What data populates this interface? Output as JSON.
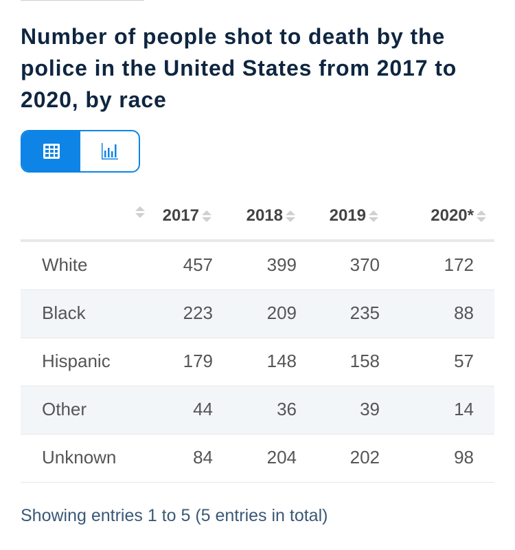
{
  "title": "Number of people shot to death by the police in the United States from 2017 to 2020, by race",
  "view_toggle": {
    "active": "table",
    "icons": [
      "table-icon",
      "bar-chart-icon"
    ],
    "accent": "#0d84e6"
  },
  "table": {
    "columns": [
      "2017",
      "2018",
      "2019",
      "2020*"
    ],
    "rows": [
      {
        "label": "White",
        "values": [
          "457",
          "399",
          "370",
          "172"
        ]
      },
      {
        "label": "Black",
        "values": [
          "223",
          "209",
          "235",
          "88"
        ]
      },
      {
        "label": "Hispanic",
        "values": [
          "179",
          "148",
          "158",
          "57"
        ]
      },
      {
        "label": "Other",
        "values": [
          "44",
          "36",
          "39",
          "14"
        ]
      },
      {
        "label": "Unknown",
        "values": [
          "84",
          "204",
          "202",
          "98"
        ]
      }
    ]
  },
  "footer": "Showing entries 1 to 5 (5 entries in total)"
}
